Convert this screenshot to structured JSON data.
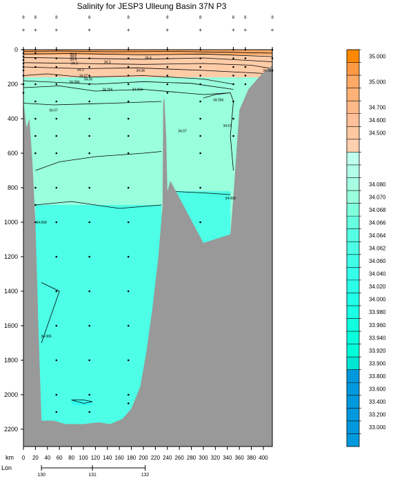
{
  "title": "Salinity for JESP3 Ulleung Basin 37N P3",
  "chart_data": {
    "type": "heatmap",
    "title": "Salinity for JESP3 Ulleung Basin 37N P3",
    "x_axis": {
      "label": "km",
      "range": [
        0,
        415
      ],
      "ticks": [
        0,
        20,
        40,
        60,
        80,
        100,
        120,
        140,
        160,
        180,
        200,
        220,
        240,
        260,
        280,
        300,
        320,
        340,
        360,
        380,
        400
      ]
    },
    "y_axis": {
      "range": [
        0,
        2300
      ],
      "inverted": true,
      "ticks": [
        0,
        200,
        400,
        600,
        800,
        1000,
        1200,
        1400,
        1600,
        1800,
        2000,
        2200
      ]
    },
    "lon_axis": {
      "label": "Lon",
      "ticks": [
        {
          "lon": 130,
          "km": 30
        },
        {
          "lon": 131,
          "km": 115
        },
        {
          "lon": 132,
          "km": 203
        }
      ]
    },
    "stations": [
      {
        "km": 0,
        "label": "8"
      },
      {
        "km": 20,
        "label": "8"
      },
      {
        "km": 55,
        "label": "8"
      },
      {
        "km": 110,
        "label": "8"
      },
      {
        "km": 175,
        "label": "8"
      },
      {
        "km": 240,
        "label": "8"
      },
      {
        "km": 295,
        "label": "8"
      },
      {
        "km": 350,
        "label": "8"
      },
      {
        "km": 370,
        "label": "8"
      },
      {
        "km": 415,
        "label": "8"
      }
    ],
    "bottom_profile": [
      {
        "km": 0,
        "depth": 300
      },
      {
        "km": 5,
        "depth": 450
      },
      {
        "km": 10,
        "depth": 400
      },
      {
        "km": 15,
        "depth": 650
      },
      {
        "km": 20,
        "depth": 1000
      },
      {
        "km": 25,
        "depth": 1600
      },
      {
        "km": 30,
        "depth": 2150
      },
      {
        "km": 50,
        "depth": 2150
      },
      {
        "km": 70,
        "depth": 2170
      },
      {
        "km": 100,
        "depth": 2170
      },
      {
        "km": 125,
        "depth": 2160
      },
      {
        "km": 145,
        "depth": 2170
      },
      {
        "km": 165,
        "depth": 2140
      },
      {
        "km": 180,
        "depth": 2080
      },
      {
        "km": 195,
        "depth": 1950
      },
      {
        "km": 205,
        "depth": 1750
      },
      {
        "km": 215,
        "depth": 1500
      },
      {
        "km": 225,
        "depth": 1200
      },
      {
        "km": 232,
        "depth": 900
      },
      {
        "km": 233,
        "depth": 300
      },
      {
        "km": 235,
        "depth": 280
      },
      {
        "km": 238,
        "depth": 500
      },
      {
        "km": 240,
        "depth": 820
      },
      {
        "km": 245,
        "depth": 760
      },
      {
        "km": 300,
        "depth": 1120
      },
      {
        "km": 345,
        "depth": 1070
      },
      {
        "km": 350,
        "depth": 850
      },
      {
        "km": 355,
        "depth": 600
      },
      {
        "km": 360,
        "depth": 350
      },
      {
        "km": 375,
        "depth": 230
      },
      {
        "km": 395,
        "depth": 150
      },
      {
        "km": 415,
        "depth": 90
      }
    ],
    "regions": [
      {
        "value": 34.07,
        "color": "#99ffdd",
        "poly": [
          [
            0,
            300
          ],
          [
            415,
            300
          ],
          [
            415,
            1000
          ],
          [
            0,
            1000
          ]
        ]
      },
      {
        "value": 34.066,
        "color": "#4dffe6",
        "poly": [
          [
            20,
            900
          ],
          [
            230,
            900
          ],
          [
            230,
            2200
          ],
          [
            20,
            2200
          ]
        ]
      },
      {
        "value": 34.066,
        "color": "#4dffe6",
        "poly": [
          [
            240,
            820
          ],
          [
            345,
            820
          ],
          [
            345,
            1120
          ],
          [
            240,
            1120
          ]
        ]
      },
      {
        "value": 34.07,
        "color": "#99ffdd",
        "poly": [
          [
            0,
            160
          ],
          [
            415,
            160
          ],
          [
            415,
            310
          ],
          [
            0,
            310
          ]
        ]
      },
      {
        "value": 34.7,
        "color": "#ffcca8",
        "poly": [
          [
            0,
            20
          ],
          [
            415,
            20
          ],
          [
            415,
            160
          ],
          [
            0,
            160
          ]
        ]
      },
      {
        "value": 35.0,
        "color": "#ffaa66",
        "poly": [
          [
            0,
            0
          ],
          [
            415,
            0
          ],
          [
            415,
            30
          ],
          [
            0,
            30
          ]
        ]
      },
      {
        "value": 34.06,
        "color": "#33ffee",
        "poly": [
          [
            80,
            2030
          ],
          [
            115,
            2030
          ],
          [
            115,
            2060
          ],
          [
            80,
            2060
          ]
        ]
      }
    ],
    "contour_labels": [
      {
        "text": "34.8",
        "km": 83,
        "depth": 25
      },
      {
        "text": "34.6",
        "km": 83,
        "depth": 40
      },
      {
        "text": "34.4",
        "km": 83,
        "depth": 55
      },
      {
        "text": "34.4",
        "km": 208,
        "depth": 45
      },
      {
        "text": "34.3",
        "km": 85,
        "depth": 78
      },
      {
        "text": "34.3",
        "km": 140,
        "depth": 70
      },
      {
        "text": "34.1",
        "km": 95,
        "depth": 115
      },
      {
        "text": "34.08",
        "km": 195,
        "depth": 120
      },
      {
        "text": "34.07",
        "km": 100,
        "depth": 150
      },
      {
        "text": "34.066",
        "km": 85,
        "depth": 185
      },
      {
        "text": "34.06",
        "km": 108,
        "depth": 170
      },
      {
        "text": "34.066",
        "km": 140,
        "depth": 230
      },
      {
        "text": "34.064",
        "km": 190,
        "depth": 230
      },
      {
        "text": "34.066",
        "km": 325,
        "depth": 290
      },
      {
        "text": "34.07",
        "km": 50,
        "depth": 350
      },
      {
        "text": "34.07",
        "km": 265,
        "depth": 470
      },
      {
        "text": "34.07",
        "km": 340,
        "depth": 440
      },
      {
        "text": "34.068",
        "km": 345,
        "depth": 860
      },
      {
        "text": "34.068",
        "km": 30,
        "depth": 1000
      },
      {
        "text": "34.066",
        "km": 38,
        "depth": 1660
      },
      {
        "text": "34.084",
        "km": 408,
        "depth": 120
      }
    ],
    "colorbar": [
      {
        "label": "35.000",
        "color": "#ff8800"
      },
      {
        "label": "",
        "color": "#ff9944"
      },
      {
        "label": "35.000",
        "color": "#ffaa66"
      },
      {
        "label": "",
        "color": "#ffb277"
      },
      {
        "label": "34.700",
        "color": "#ffb888"
      },
      {
        "label": "34.600",
        "color": "#ffc099"
      },
      {
        "label": "34.500",
        "color": "#ffc8a0"
      },
      {
        "label": "",
        "color": "#ffd0b0"
      },
      {
        "label": "",
        "color": "#bfffee"
      },
      {
        "label": "",
        "color": "#b2ffe8"
      },
      {
        "label": "34.080",
        "color": "#a6ffe2"
      },
      {
        "label": "34.070",
        "color": "#99ffdd"
      },
      {
        "label": "34.068",
        "color": "#80ffdd"
      },
      {
        "label": "34.066",
        "color": "#66ffe0"
      },
      {
        "label": "34.064",
        "color": "#55ffe3"
      },
      {
        "label": "34.062",
        "color": "#4dffe6"
      },
      {
        "label": "34.060",
        "color": "#40ffe8"
      },
      {
        "label": "34.040",
        "color": "#33ffeb"
      },
      {
        "label": "34.020",
        "color": "#2bffea"
      },
      {
        "label": "34.000",
        "color": "#22ffe8"
      },
      {
        "label": "33.980",
        "color": "#1affe5"
      },
      {
        "label": "33.960",
        "color": "#11ffe0"
      },
      {
        "label": "33.940",
        "color": "#0affdd"
      },
      {
        "label": "33.920",
        "color": "#00ffd8"
      },
      {
        "label": "33.900",
        "color": "#00e6d4"
      },
      {
        "label": "33.800",
        "color": "#0099dd"
      },
      {
        "label": "33.600",
        "color": "#0099dd"
      },
      {
        "label": "33.400",
        "color": "#0099dd"
      },
      {
        "label": "33.200",
        "color": "#0099dd"
      },
      {
        "label": "33.000",
        "color": "#0099dd"
      },
      {
        "label": "",
        "color": "#0099dd"
      }
    ],
    "sample_columns": [
      {
        "km": 0,
        "depths": [
          0,
          20,
          40,
          60,
          80,
          100,
          120,
          150,
          200,
          250
        ]
      },
      {
        "km": 20,
        "depths": [
          0,
          20,
          50,
          100,
          200,
          300,
          400,
          500,
          600,
          800,
          900,
          1000
        ]
      },
      {
        "km": 55,
        "depths": [
          0,
          50,
          100,
          150,
          200,
          300,
          400,
          500,
          600,
          800,
          1000,
          1200,
          1400,
          1600,
          1800,
          2000,
          2100
        ]
      },
      {
        "km": 110,
        "depths": [
          0,
          50,
          100,
          150,
          200,
          300,
          400,
          500,
          600,
          800,
          1000,
          1200,
          1400,
          1600,
          1800,
          2000,
          2100
        ]
      },
      {
        "km": 175,
        "depths": [
          0,
          50,
          100,
          150,
          200,
          300,
          400,
          500,
          600,
          800,
          1000,
          1200,
          1400,
          1600,
          1800,
          2000,
          2050
        ]
      },
      {
        "km": 240,
        "depths": [
          0,
          50,
          100,
          150,
          200,
          250
        ]
      },
      {
        "km": 295,
        "depths": [
          0,
          50,
          100,
          150,
          200,
          300,
          400,
          500,
          600,
          800,
          1000
        ]
      },
      {
        "km": 350,
        "depths": [
          0,
          50,
          100,
          150,
          200,
          300,
          400,
          500
        ]
      },
      {
        "km": 370,
        "depths": [
          0,
          50,
          100,
          150,
          200
        ]
      },
      {
        "km": 415,
        "depths": [
          0,
          50
        ]
      }
    ]
  }
}
